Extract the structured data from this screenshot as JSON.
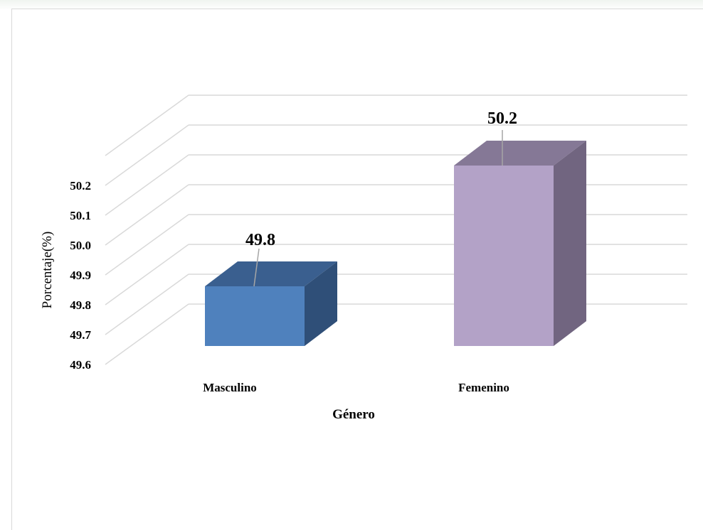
{
  "chart_data": {
    "type": "bar",
    "style": "3d-column",
    "categories": [
      "Masculino",
      "Femenino"
    ],
    "values": [
      49.8,
      50.2
    ],
    "data_labels": [
      "49.8",
      "50.2"
    ],
    "xlabel": "Género",
    "ylabel": "Porcentaje(%)",
    "ylim": [
      49.6,
      50.2
    ],
    "yticks": [
      "49.6",
      "49.7",
      "49.8",
      "49.9",
      "50.0",
      "50.1",
      "50.2"
    ],
    "grid": true,
    "legend": "none",
    "colors": {
      "Masculino": {
        "front": "#4f81bd",
        "top": "#3a5f8f",
        "side": "#2f4f78"
      },
      "Femenino": {
        "front": "#b3a2c7",
        "top": "#857896",
        "side": "#716580"
      },
      "grid": "#d9d9d9"
    }
  }
}
